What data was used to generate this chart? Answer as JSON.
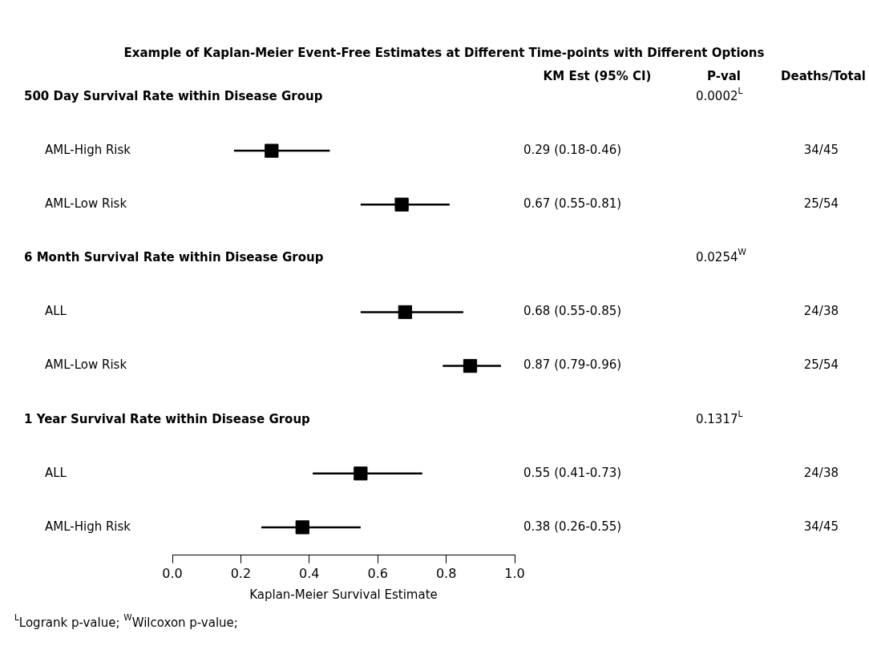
{
  "chart_data": {
    "type": "scatter",
    "orientation": "horizontal",
    "title": "Example of Kaplan-Meier Event-Free Estimates at Different Time-points with Different Options",
    "xlabel": "Kaplan-Meier Survival Estimate",
    "categories": [
      "500 Day Survival Rate within Disease Group",
      "AML-High Risk",
      "AML-Low Risk",
      "6 Month Survival Rate within Disease Group",
      "ALL",
      "AML-Low Risk",
      "1 Year Survival Rate within Disease Group",
      "ALL",
      "AML-High Risk"
    ],
    "values": [
      null,
      0.29,
      0.67,
      null,
      0.68,
      0.87,
      null,
      0.55,
      0.38
    ],
    "errors": [
      null,
      [
        0.18,
        0.46
      ],
      [
        0.55,
        0.81
      ],
      null,
      [
        0.55,
        0.85
      ],
      [
        0.79,
        0.96
      ],
      null,
      [
        0.41,
        0.73
      ],
      [
        0.26,
        0.55
      ]
    ],
    "value_labels": [
      null,
      "0.29 (0.18-0.46)",
      "0.67 (0.55-0.81)",
      null,
      "0.68 (0.55-0.85)",
      "0.87 (0.79-0.96)",
      null,
      "0.55 (0.41-0.73)",
      "0.38 (0.26-0.55)"
    ],
    "y2_categories": [
      null,
      "34/45",
      "25/54",
      null,
      "24/38",
      "25/54",
      null,
      "24/38",
      "34/45"
    ],
    "color": "#000000",
    "marker": "square",
    "grid": false,
    "legend": false,
    "xlim": [
      0,
      1
    ],
    "xticks": [
      {
        "value": 0,
        "label": "0.0"
      },
      {
        "value": 0.2,
        "label": "0.2"
      },
      {
        "value": 0.4,
        "label": "0.4"
      },
      {
        "value": 0.6,
        "label": "0.6"
      },
      {
        "value": 0.8,
        "label": "0.8"
      },
      {
        "value": 1,
        "label": "1.0"
      }
    ],
    "annotations": [
      "KM Est (95% CI)",
      "P-val",
      "Deaths/Total",
      "0.0002$^{L}$",
      "0.0254$^{W}$",
      "0.1317$^{L}$",
      "$^{L}$Logrank p-value; $^{W}$Wilcoxon p-value;"
    ]
  }
}
